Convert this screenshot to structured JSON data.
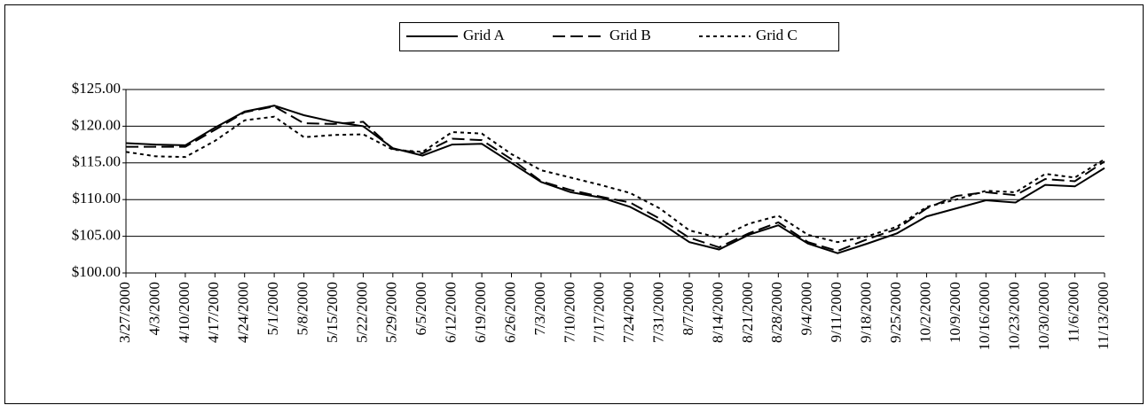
{
  "chart_data": {
    "type": "line",
    "categories": [
      "3/27/2000",
      "4/3/2000",
      "4/10/2000",
      "4/17/2000",
      "4/24/2000",
      "5/1/2000",
      "5/8/2000",
      "5/15/2000",
      "5/22/2000",
      "5/29/2000",
      "6/5/2000",
      "6/12/2000",
      "6/19/2000",
      "6/26/2000",
      "7/3/2000",
      "7/10/2000",
      "7/17/2000",
      "7/24/2000",
      "7/31/2000",
      "8/7/2000",
      "8/14/2000",
      "8/21/2000",
      "8/28/2000",
      "9/4/2000",
      "9/11/2000",
      "9/18/2000",
      "9/25/2000",
      "10/2/2000",
      "10/9/2000",
      "10/16/2000",
      "10/23/2000",
      "10/30/2000",
      "11/6/2000",
      "11/13/2000"
    ],
    "series": [
      {
        "name": "Grid A",
        "color": "#000000",
        "line_style": "solid",
        "values": [
          117.7,
          117.5,
          117.4,
          119.8,
          122.0,
          122.8,
          121.5,
          120.6,
          120.0,
          117.0,
          116.0,
          117.5,
          117.6,
          115.0,
          112.4,
          111.0,
          110.3,
          109.0,
          106.9,
          104.2,
          103.2,
          105.2,
          106.5,
          104.0,
          102.7,
          104.0,
          105.4,
          107.7,
          108.8,
          109.9,
          109.6,
          112.0,
          111.8,
          114.3
        ]
      },
      {
        "name": "Grid B",
        "color": "#000000",
        "line_style": "dashed",
        "values": [
          117.2,
          117.2,
          117.2,
          119.5,
          121.9,
          122.7,
          120.4,
          120.3,
          120.6,
          116.9,
          116.3,
          118.3,
          118.1,
          115.5,
          112.5,
          111.3,
          110.4,
          109.6,
          107.4,
          104.8,
          103.5,
          105.4,
          106.9,
          104.2,
          103.0,
          104.6,
          106.0,
          108.8,
          110.5,
          111.0,
          110.6,
          112.8,
          112.5,
          115.2
        ]
      },
      {
        "name": "Grid C",
        "color": "#000000",
        "line_style": "dotted",
        "values": [
          116.5,
          115.9,
          115.8,
          118.0,
          120.8,
          121.3,
          118.5,
          118.8,
          118.9,
          116.8,
          116.5,
          119.2,
          119.0,
          116.2,
          114.0,
          113.0,
          112.0,
          110.9,
          108.8,
          105.8,
          104.8,
          106.7,
          107.8,
          105.2,
          104.2,
          105.0,
          106.3,
          109.0,
          110.0,
          111.2,
          111.0,
          113.5,
          113.0,
          115.5
        ]
      }
    ],
    "ylim": [
      100,
      125
    ],
    "yticks": [
      {
        "value": 100,
        "label": "$100.00"
      },
      {
        "value": 105,
        "label": "$105.00"
      },
      {
        "value": 110,
        "label": "$110.00"
      },
      {
        "value": 115,
        "label": "$115.00"
      },
      {
        "value": 120,
        "label": "$120.00"
      },
      {
        "value": 125,
        "label": "$125.00"
      }
    ],
    "grid": true,
    "legend": "top"
  }
}
